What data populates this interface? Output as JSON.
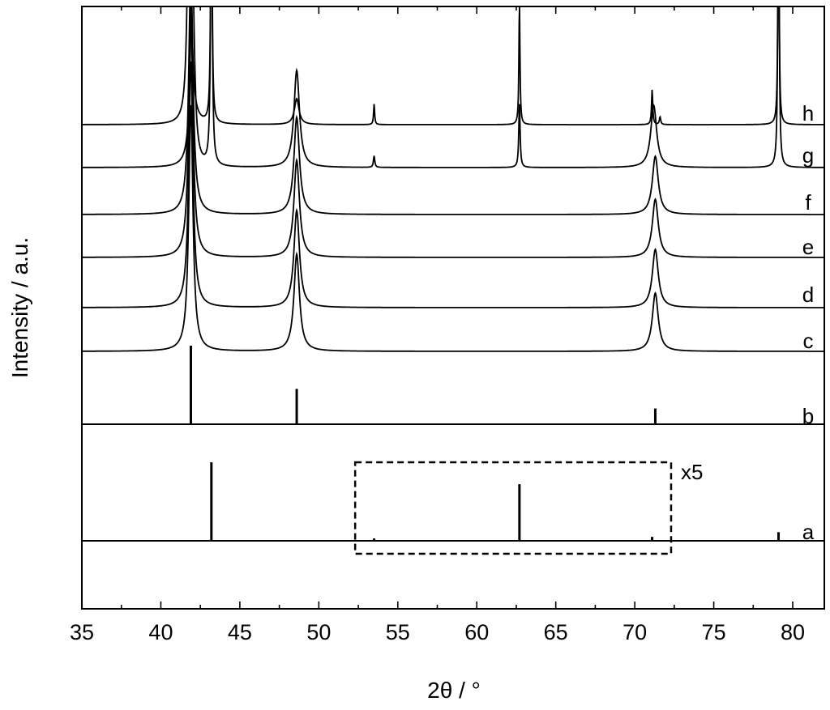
{
  "chart_data": {
    "type": "line",
    "title": "",
    "xlabel": "2θ / °",
    "ylabel": "Intensity / a.u.",
    "xlim": [
      35,
      82
    ],
    "xticks": [
      35,
      40,
      45,
      50,
      55,
      60,
      65,
      70,
      75,
      80
    ],
    "xtick_labels": [
      "35",
      "40",
      "45",
      "50",
      "55",
      "60",
      "65",
      "70",
      "75",
      "80"
    ],
    "y_axis_ticks": "none",
    "grid": false,
    "legend": "none",
    "curves": [
      {
        "label": "c",
        "kind": "pattern",
        "baseline": 0.0,
        "peaks": [
          {
            "x": 41.9,
            "height": 1.9,
            "width": 0.32
          },
          {
            "x": 48.6,
            "height": 0.75,
            "width": 0.42
          },
          {
            "x": 71.3,
            "height": 0.45,
            "width": 0.45
          }
        ]
      },
      {
        "label": "d",
        "kind": "pattern",
        "baseline": 0.0,
        "peaks": [
          {
            "x": 41.9,
            "height": 1.9,
            "width": 0.32
          },
          {
            "x": 48.6,
            "height": 0.75,
            "width": 0.42
          },
          {
            "x": 71.3,
            "height": 0.45,
            "width": 0.45
          }
        ]
      },
      {
        "label": "e",
        "kind": "pattern",
        "baseline": 0.0,
        "peaks": [
          {
            "x": 41.9,
            "height": 1.9,
            "width": 0.32
          },
          {
            "x": 48.6,
            "height": 0.75,
            "width": 0.42
          },
          {
            "x": 71.3,
            "height": 0.45,
            "width": 0.45
          }
        ]
      },
      {
        "label": "f",
        "kind": "pattern",
        "baseline": 0.0,
        "peaks": [
          {
            "x": 41.9,
            "height": 1.9,
            "width": 0.32
          },
          {
            "x": 48.6,
            "height": 0.75,
            "width": 0.42
          },
          {
            "x": 71.3,
            "height": 0.45,
            "width": 0.45
          }
        ]
      },
      {
        "label": "g",
        "kind": "pattern",
        "baseline": 0.0,
        "peaks": [
          {
            "x": 42.0,
            "height": 1.6,
            "width": 0.3
          },
          {
            "x": 43.2,
            "height": 2.3,
            "width": 0.12
          },
          {
            "x": 48.6,
            "height": 0.75,
            "width": 0.42
          },
          {
            "x": 53.5,
            "height": 0.09,
            "width": 0.1
          },
          {
            "x": 62.7,
            "height": 0.5,
            "width": 0.1
          },
          {
            "x": 71.2,
            "height": 0.48,
            "width": 0.45
          },
          {
            "x": 79.1,
            "height": 2.3,
            "width": 0.1
          }
        ]
      },
      {
        "label": "h",
        "kind": "pattern",
        "baseline": 0.0,
        "peaks": [
          {
            "x": 41.8,
            "height": 2.3,
            "width": 0.25
          },
          {
            "x": 43.2,
            "height": 2.3,
            "width": 0.1
          },
          {
            "x": 48.6,
            "height": 0.2,
            "width": 0.35
          },
          {
            "x": 53.5,
            "height": 0.16,
            "width": 0.08
          },
          {
            "x": 62.7,
            "height": 0.95,
            "width": 0.08
          },
          {
            "x": 71.1,
            "height": 0.27,
            "width": 0.09
          },
          {
            "x": 71.6,
            "height": 0.06,
            "width": 0.1
          },
          {
            "x": 79.1,
            "height": 2.3,
            "width": 0.08
          }
        ]
      }
    ],
    "reference_b": {
      "label": "b",
      "lines": [
        {
          "x": 41.9,
          "height": 1.0
        },
        {
          "x": 48.6,
          "height": 0.45
        },
        {
          "x": 71.3,
          "height": 0.2
        }
      ]
    },
    "reference_a": {
      "label": "a",
      "lines": [
        {
          "x": 43.2,
          "height": 1.0
        },
        {
          "x": 53.5,
          "height": 0.03
        },
        {
          "x": 62.7,
          "height": 0.72
        },
        {
          "x": 71.1,
          "height": 0.05
        },
        {
          "x": 79.1,
          "height": 0.11
        }
      ],
      "annotation": {
        "text": "x5",
        "box_x_range": [
          52.3,
          72.3
        ]
      }
    }
  }
}
